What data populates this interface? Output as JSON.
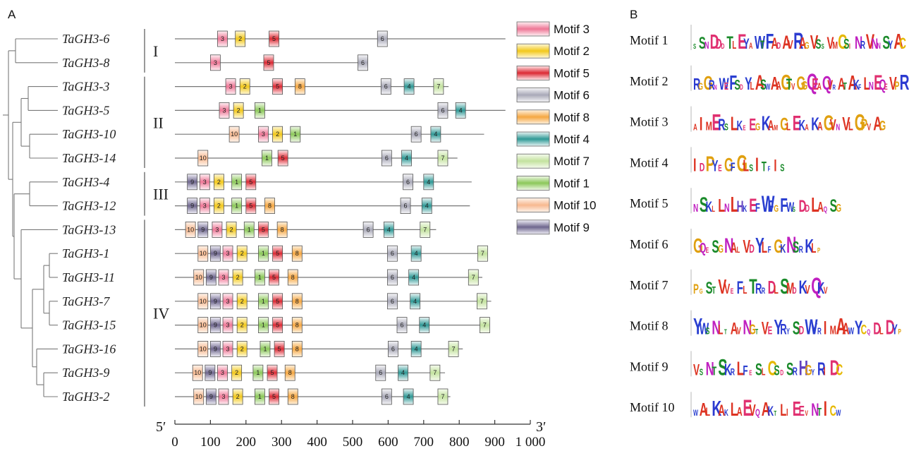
{
  "panels": {
    "a_label": "A",
    "b_label": "B"
  },
  "genes": [
    {
      "name": "TaGH3-6",
      "length": 930,
      "motifs": [
        [
          3,
          120
        ],
        [
          2,
          170
        ],
        [
          5,
          265
        ],
        [
          6,
          570
        ]
      ]
    },
    {
      "name": "TaGH3-8",
      "length": 530,
      "motifs": [
        [
          3,
          100
        ],
        [
          5,
          250
        ],
        [
          6,
          515
        ]
      ]
    },
    {
      "name": "TaGH3-3",
      "length": 770,
      "motifs": [
        [
          3,
          143
        ],
        [
          2,
          183
        ],
        [
          5,
          275
        ],
        [
          8,
          338
        ],
        [
          6,
          580
        ],
        [
          4,
          645
        ],
        [
          7,
          728
        ]
      ]
    },
    {
      "name": "TaGH3-5",
      "length": 930,
      "motifs": [
        [
          3,
          125
        ],
        [
          2,
          165
        ],
        [
          1,
          225
        ],
        [
          6,
          740
        ],
        [
          4,
          790
        ]
      ]
    },
    {
      "name": "TaGH3-10",
      "length": 870,
      "motifs": [
        [
          10,
          153
        ],
        [
          3,
          235
        ],
        [
          2,
          275
        ],
        [
          1,
          325
        ],
        [
          6,
          665
        ],
        [
          4,
          720
        ]
      ]
    },
    {
      "name": "TaGH3-14",
      "length": 795,
      "motifs": [
        [
          10,
          65
        ],
        [
          1,
          245
        ],
        [
          5,
          290
        ],
        [
          6,
          582
        ],
        [
          4,
          638
        ],
        [
          7,
          740
        ]
      ]
    },
    {
      "name": "TaGH3-4",
      "length": 835,
      "motifs": [
        [
          9,
          35
        ],
        [
          3,
          70
        ],
        [
          2,
          110
        ],
        [
          1,
          160
        ],
        [
          5,
          200
        ],
        [
          6,
          642
        ],
        [
          4,
          700
        ]
      ]
    },
    {
      "name": "TaGH3-12",
      "length": 830,
      "motifs": [
        [
          9,
          35
        ],
        [
          3,
          70
        ],
        [
          2,
          110
        ],
        [
          1,
          160
        ],
        [
          5,
          200
        ],
        [
          8,
          253
        ],
        [
          6,
          635
        ],
        [
          4,
          695
        ]
      ]
    },
    {
      "name": "TaGH3-13",
      "length": 735,
      "motifs": [
        [
          10,
          30
        ],
        [
          9,
          65
        ],
        [
          3,
          105
        ],
        [
          2,
          145
        ],
        [
          1,
          195
        ],
        [
          5,
          235
        ],
        [
          8,
          288
        ],
        [
          6,
          530
        ],
        [
          4,
          588
        ],
        [
          7,
          690
        ]
      ]
    },
    {
      "name": "TaGH3-1",
      "length": 880,
      "motifs": [
        [
          10,
          65
        ],
        [
          9,
          100
        ],
        [
          3,
          135
        ],
        [
          2,
          175
        ],
        [
          1,
          235
        ],
        [
          5,
          275
        ],
        [
          8,
          330
        ],
        [
          6,
          598
        ],
        [
          4,
          665
        ],
        [
          7,
          852
        ]
      ]
    },
    {
      "name": "TaGH3-11",
      "length": 865,
      "motifs": [
        [
          10,
          53
        ],
        [
          9,
          88
        ],
        [
          3,
          123
        ],
        [
          2,
          163
        ],
        [
          1,
          225
        ],
        [
          5,
          265
        ],
        [
          8,
          318
        ],
        [
          6,
          598
        ],
        [
          4,
          658
        ],
        [
          7,
          826
        ]
      ]
    },
    {
      "name": "TaGH3-7",
      "length": 890,
      "motifs": [
        [
          10,
          65
        ],
        [
          9,
          100
        ],
        [
          3,
          135
        ],
        [
          2,
          175
        ],
        [
          1,
          235
        ],
        [
          5,
          275
        ],
        [
          8,
          330
        ],
        [
          6,
          598
        ],
        [
          4,
          662
        ],
        [
          7,
          850
        ]
      ]
    },
    {
      "name": "TaGH3-15",
      "length": 885,
      "motifs": [
        [
          10,
          65
        ],
        [
          9,
          100
        ],
        [
          3,
          135
        ],
        [
          2,
          175
        ],
        [
          1,
          235
        ],
        [
          5,
          275
        ],
        [
          8,
          330
        ],
        [
          6,
          625
        ],
        [
          4,
          688
        ],
        [
          7,
          858
        ]
      ]
    },
    {
      "name": "TaGH3-16",
      "length": 810,
      "motifs": [
        [
          10,
          65
        ],
        [
          9,
          100
        ],
        [
          3,
          135
        ],
        [
          2,
          175
        ],
        [
          1,
          240
        ],
        [
          5,
          280
        ],
        [
          8,
          330
        ],
        [
          6,
          600
        ],
        [
          4,
          665
        ],
        [
          7,
          770
        ]
      ]
    },
    {
      "name": "TaGH3-9",
      "length": 760,
      "motifs": [
        [
          10,
          50
        ],
        [
          9,
          85
        ],
        [
          3,
          120
        ],
        [
          2,
          160
        ],
        [
          1,
          220
        ],
        [
          5,
          260
        ],
        [
          8,
          310
        ],
        [
          6,
          565
        ],
        [
          4,
          628
        ],
        [
          7,
          718
        ]
      ]
    },
    {
      "name": "TaGH3-2",
      "length": 775,
      "motifs": [
        [
          10,
          53
        ],
        [
          9,
          88
        ],
        [
          3,
          123
        ],
        [
          2,
          163
        ],
        [
          1,
          225
        ],
        [
          5,
          265
        ],
        [
          8,
          318
        ],
        [
          6,
          582
        ],
        [
          4,
          643
        ],
        [
          7,
          740
        ]
      ]
    }
  ],
  "groups": [
    {
      "label": "I",
      "first": 0,
      "last": 1
    },
    {
      "label": "II",
      "first": 2,
      "last": 5
    },
    {
      "label": "III",
      "first": 6,
      "last": 7
    },
    {
      "label": "IV",
      "first": 8,
      "last": 15
    }
  ],
  "motif_styles": {
    "1": {
      "top": "#f0f8e8",
      "mid": "#8cc85a",
      "bot": "#f0f8e8"
    },
    "2": {
      "top": "#fff8d8",
      "mid": "#f2c81c",
      "bot": "#fff8d8"
    },
    "3": {
      "top": "#fff0f4",
      "mid": "#ee7796",
      "bot": "#fff0f4"
    },
    "4": {
      "top": "#e8f4f4",
      "mid": "#2f9996",
      "bot": "#e8f4f4"
    },
    "5": {
      "top": "#ffe8ea",
      "mid": "#dc2a34",
      "bot": "#ffe8ea"
    },
    "6": {
      "top": "#f6f6f8",
      "mid": "#a9a9b8",
      "bot": "#f6f6f8"
    },
    "7": {
      "top": "#f6fbee",
      "mid": "#c3e29f",
      "bot": "#f6fbee"
    },
    "8": {
      "top": "#fff2e0",
      "mid": "#f5a742",
      "bot": "#fff2e0"
    },
    "9": {
      "top": "#efeef6",
      "mid": "#6f678e",
      "bot": "#efeef6"
    },
    "10": {
      "top": "#fff4ec",
      "mid": "#f7b990",
      "bot": "#fff4ec"
    }
  },
  "legend": [
    {
      "motif": 3,
      "label": "Motif 3"
    },
    {
      "motif": 2,
      "label": "Motif 2"
    },
    {
      "motif": 5,
      "label": "Motif 5"
    },
    {
      "motif": 6,
      "label": "Motif 6"
    },
    {
      "motif": 8,
      "label": "Motif 8"
    },
    {
      "motif": 4,
      "label": "Motif 4"
    },
    {
      "motif": 7,
      "label": "Motif 7"
    },
    {
      "motif": 1,
      "label": "Motif 1"
    },
    {
      "motif": 10,
      "label": "Motif 10"
    },
    {
      "motif": 9,
      "label": "Motif 9"
    }
  ],
  "axis": {
    "start_label": "5′",
    "end_label": "3′",
    "min": 0,
    "max": 1000,
    "ticks": [
      0,
      100,
      200,
      300,
      400,
      500,
      600,
      700,
      800,
      900,
      1000
    ],
    "tick_labels": [
      "0",
      "100",
      "200",
      "300",
      "400",
      "500",
      "600",
      "700",
      "800",
      "900",
      "1 000"
    ]
  },
  "logos": [
    {
      "name": "Motif 1",
      "seq": "SSNDDDTLEYAWTFADAVRAGVSSVMCSINRVNNSYAC"
    },
    {
      "name": "Motif 2",
      "seq": "RGGRNWEFSDYLASWAAGTVGGQEAQVRATAKFLNEQEVPR"
    },
    {
      "name": "Motif 3",
      "seq": "AIMERSLKEEGKAMGLEKAKAGVNVLGPVAG"
    },
    {
      "name": "Motif 4",
      "seq": "IDPYEGFGLSITFIS"
    },
    {
      "name": "Motif 5",
      "seq": "NSKLLNLHKEFWFGFWSDDLAQSG"
    },
    {
      "name": "Motif 6",
      "seq": "GQESGNALVDYLFGKNSRKLP"
    },
    {
      "name": "Motif 7",
      "seq": "PGSTVVEFLTRRDLSMDKVQKV"
    },
    {
      "name": "Motif 8",
      "seq": "YWSNLTAVNGTVEYRYSDWYRIMAAWYCQDLDYP"
    },
    {
      "name": "Motif 9",
      "seq": "VSNTSKRLFESLCSDSRHGYRIDC"
    },
    {
      "name": "Motif 10",
      "seq": "WALKAKLAEVQAKTLIEEVNTICW"
    }
  ]
}
